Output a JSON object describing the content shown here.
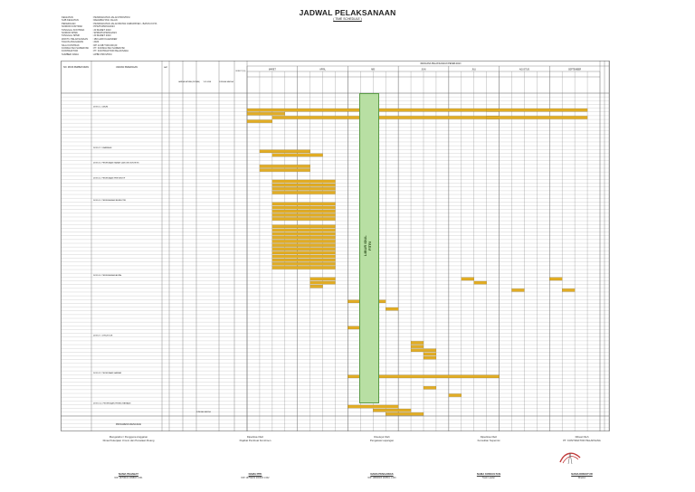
{
  "document": {
    "title": "JADWAL PELAKSANAAN",
    "subtitle": "( TIME SCHEDULE )",
    "stamp_label": "LIBUR IDUL FITRI"
  },
  "info": [
    {
      "k": "KEGIATAN",
      "v": "PENINGKATAN JALAN PROVINSI"
    },
    {
      "k": "SUB KEGIATAN",
      "v": "REHABILITASI JALAN"
    },
    {
      "k": "PEKERJAAN",
      "v": "PENINGKATAN JALAN BATAS KABUPATEN - BATAS KOTA"
    },
    {
      "k": "NOMOR KONTRAK",
      "v": "PPK/PUPR/01/2023"
    },
    {
      "k": "TANGGAL KONTRAK",
      "v": "23 MARET 2023"
    },
    {
      "k": "NOMOR SPMK",
      "v": "SPMK/PUPR/01/2023"
    },
    {
      "k": "TANGGAL SPMK",
      "v": "23 MARET 2023"
    },
    {
      "k": "WAKTU PELAKSANAAN",
      "v": "180 HARI KALENDER"
    },
    {
      "k": "TAHUN ANGGARAN",
      "v": "2023"
    },
    {
      "k": "NILAI KONTRAK",
      "v": "RP 14.987.500.000,00"
    },
    {
      "k": "KONSULTAN SUPERVISI",
      "v": "PT. KONSULTAN SUPERVISI"
    },
    {
      "k": "KONTRAKTOR",
      "v": "PT. KONTRAKTOR PELAKSANA"
    },
    {
      "k": "SUMBER DANA",
      "v": "APBD PROVINSI"
    }
  ],
  "table": {
    "col_item": "NO. MATA PEMBAYARAN",
    "col_uraian": "URAIAN PEKERJAAN",
    "col_sat": "SAT",
    "col_vol": "VOLUME",
    "col_harga": "HARGA SATUAN (RUPIAH)",
    "col_jumlah": "JUMLAH HARGA",
    "col_bobot": "BOBOT (%)",
    "rencana_header": "RENCANA PELAKSANAAN PEKERJAAN",
    "months": [
      "MARET",
      "APRIL",
      "MEI",
      "JUNI",
      "JULI",
      "AGUSTUS",
      "SEPTEMBER"
    ],
    "sections": [
      "DIVISI 1. UMUM",
      "DIVISI 2. DRAINASE",
      "DIVISI 3. PEKERJAAN TANAH DAN GEOSINTETIK",
      "DIVISI 4. PEKERJAAN PREVENTIF",
      "DIVISI 5. PERKERASAN BERBUTIR",
      "DIVISI 6. PERKERASAN ASPAL",
      "DIVISI 7. STRUKTUR",
      "DIVISI 9. PEKERJAAN HARIAN",
      "DIVISI 10. PEKERJAAN PEMELIHARAAN"
    ],
    "total_label": "JUMLAH HARGA",
    "ppn_label": "PPN 11%",
    "grand_label": "TOTAL HARGA",
    "progress_label": "PROGRESS RENCANA"
  },
  "signatures": [
    {
      "role": "Mengetahui / Pengguna Anggaran",
      "org": "Dinas Pekerjaan Umum dan Penataan Ruang",
      "name": "NAMA PEJABAT",
      "nip": "NIP. 19700101 199803 1 001"
    },
    {
      "role": "Diperiksa Oleh",
      "org": "Pejabat Pembuat Komitmen",
      "name": "NAMA PPK",
      "nip": "NIP. 19750202 200003 1 002"
    },
    {
      "role": "Disetujui Oleh",
      "org": "Pengawas Lapangan",
      "name": "NAMA PENGAWAS",
      "nip": "NIP. 19800303 200501 1 003"
    },
    {
      "role": "Diperiksa Oleh",
      "org": "Konsultan Supervisi",
      "name": "NAMA KONSULTAN",
      "nip": "Team Leader"
    },
    {
      "role": "Dibuat Oleh",
      "org": "PT. KONTRAKTOR PELAKSANA",
      "name": "NAMA DIREKTUR",
      "nip": "Direktur"
    }
  ],
  "colors": {
    "bar": "#e2ad24",
    "stamp": "#b8dfa3",
    "grid": "#6b6b6b"
  }
}
